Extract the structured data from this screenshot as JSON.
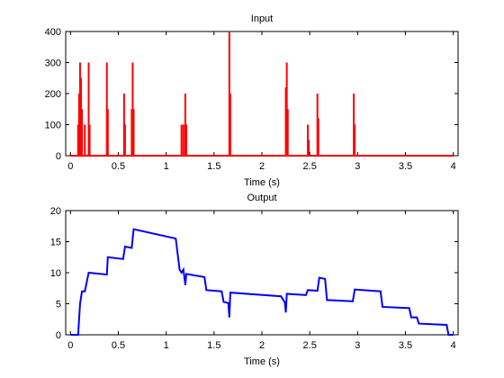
{
  "figure": {
    "background": "#ffffff"
  },
  "chart_data": [
    {
      "type": "line",
      "title": "Input",
      "xlabel": "Time (s)",
      "ylabel": "",
      "xlim": [
        -0.05,
        4.05
      ],
      "ylim": [
        0,
        400
      ],
      "xticks": [
        0,
        0.5,
        1,
        1.5,
        2,
        2.5,
        3,
        3.5,
        4
      ],
      "xtick_labels": [
        "0",
        "0.5",
        "1",
        "1.5",
        "2",
        "2.5",
        "3",
        "3.5",
        "4"
      ],
      "yticks": [
        0,
        100,
        200,
        300,
        400
      ],
      "ytick_labels": [
        "0",
        "100",
        "200",
        "300",
        "400"
      ],
      "grid": false,
      "style": "pulse",
      "series": [
        {
          "color": "#ff0000",
          "line_width": 2,
          "baseline": [
            [
              0,
              0
            ],
            [
              4,
              0
            ]
          ],
          "pulses": [
            [
              0.08,
              100
            ],
            [
              0.09,
              200
            ],
            [
              0.1,
              300
            ],
            [
              0.11,
              250
            ],
            [
              0.12,
              150
            ],
            [
              0.15,
              100
            ],
            [
              0.19,
              300
            ],
            [
              0.2,
              100
            ],
            [
              0.38,
              300
            ],
            [
              0.39,
              150
            ],
            [
              0.56,
              200
            ],
            [
              0.57,
              100
            ],
            [
              0.64,
              150
            ],
            [
              0.65,
              300
            ],
            [
              0.66,
              150
            ],
            [
              1.16,
              100
            ],
            [
              1.18,
              100
            ],
            [
              1.2,
              200
            ],
            [
              1.21,
              100
            ],
            [
              1.66,
              400
            ],
            [
              1.67,
              200
            ],
            [
              2.25,
              220
            ],
            [
              2.26,
              300
            ],
            [
              2.27,
              150
            ],
            [
              2.48,
              100
            ],
            [
              2.49,
              50
            ],
            [
              2.58,
              200
            ],
            [
              2.59,
              120
            ],
            [
              2.96,
              200
            ],
            [
              2.97,
              100
            ]
          ]
        }
      ]
    },
    {
      "type": "line",
      "title": "Output",
      "xlabel": "Time (s)",
      "ylabel": "",
      "xlim": [
        -0.05,
        4.05
      ],
      "ylim": [
        0,
        20
      ],
      "xticks": [
        0,
        0.5,
        1,
        1.5,
        2,
        2.5,
        3,
        3.5,
        4
      ],
      "xtick_labels": [
        "0",
        "0.5",
        "1",
        "1.5",
        "2",
        "2.5",
        "3",
        "3.5",
        "4"
      ],
      "yticks": [
        0,
        5,
        10,
        15,
        20
      ],
      "ytick_labels": [
        "0",
        "5",
        "10",
        "15",
        "20"
      ],
      "grid": false,
      "style": "line",
      "series": [
        {
          "color": "#0000ff",
          "line_width": 2,
          "points": [
            [
              0,
              0
            ],
            [
              0.08,
              0
            ],
            [
              0.1,
              5
            ],
            [
              0.12,
              7
            ],
            [
              0.15,
              7
            ],
            [
              0.19,
              10
            ],
            [
              0.38,
              9.7
            ],
            [
              0.39,
              12.5
            ],
            [
              0.55,
              12.2
            ],
            [
              0.57,
              14.2
            ],
            [
              0.64,
              14
            ],
            [
              0.66,
              17
            ],
            [
              1.1,
              15.5
            ],
            [
              1.14,
              10.5
            ],
            [
              1.16,
              10.0
            ],
            [
              1.18,
              10.5
            ],
            [
              1.2,
              8.0
            ],
            [
              1.21,
              9.8
            ],
            [
              1.4,
              9.3
            ],
            [
              1.42,
              7.2
            ],
            [
              1.58,
              7.0
            ],
            [
              1.6,
              5.3
            ],
            [
              1.65,
              5.1
            ],
            [
              1.66,
              2.8
            ],
            [
              1.67,
              6.8
            ],
            [
              2.2,
              6.2
            ],
            [
              2.24,
              5.2
            ],
            [
              2.25,
              3.6
            ],
            [
              2.26,
              6.6
            ],
            [
              2.46,
              6.4
            ],
            [
              2.48,
              7.2
            ],
            [
              2.58,
              7.1
            ],
            [
              2.6,
              9.2
            ],
            [
              2.66,
              9.0
            ],
            [
              2.68,
              5.6
            ],
            [
              2.95,
              5.4
            ],
            [
              2.97,
              7.3
            ],
            [
              3.24,
              7.0
            ],
            [
              3.26,
              4.5
            ],
            [
              3.54,
              4.3
            ],
            [
              3.56,
              2.8
            ],
            [
              3.62,
              2.8
            ],
            [
              3.64,
              1.8
            ],
            [
              3.93,
              1.6
            ],
            [
              3.95,
              0
            ],
            [
              4.0,
              0
            ]
          ]
        }
      ]
    }
  ]
}
